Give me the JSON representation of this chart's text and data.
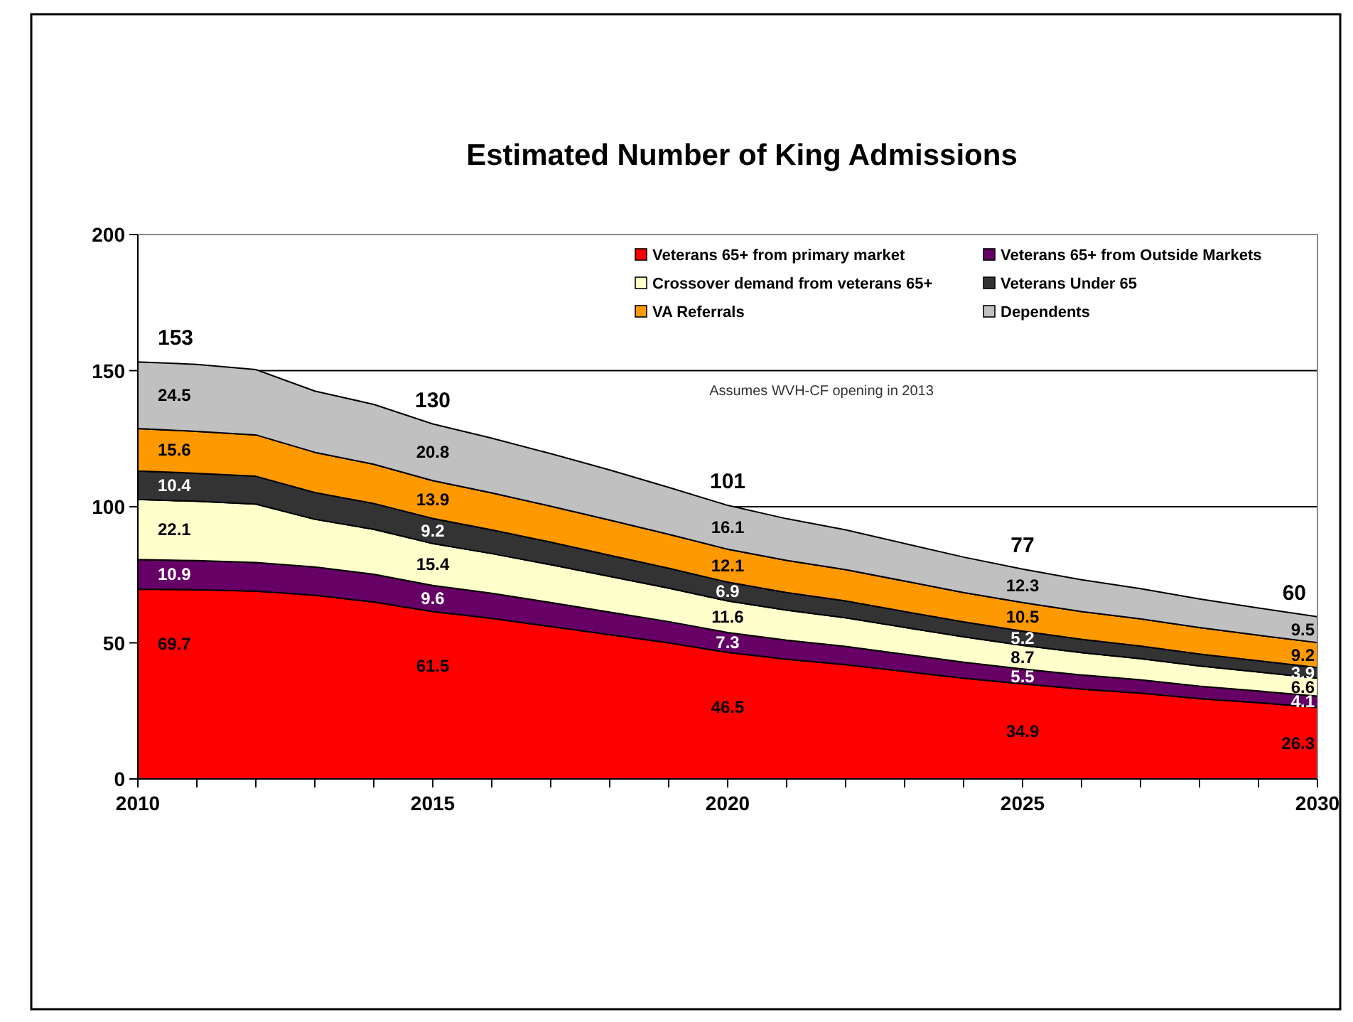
{
  "chart_data": {
    "type": "area",
    "stacked": true,
    "title": "Estimated Number of King Admissions",
    "annotations": [
      "Assumes WVH-CF opening in 2013"
    ],
    "x": [
      2010,
      2011,
      2012,
      2013,
      2014,
      2015,
      2016,
      2017,
      2018,
      2019,
      2020,
      2021,
      2022,
      2023,
      2024,
      2025,
      2026,
      2027,
      2028,
      2029,
      2030
    ],
    "xlim": [
      2010,
      2030
    ],
    "xticks": [
      2010,
      {
        "value": 2011,
        "label": null
      },
      {
        "value": 2012,
        "label": null
      },
      {
        "value": 2013,
        "label": null
      },
      {
        "value": 2014,
        "label": null
      },
      2015,
      {
        "value": 2016,
        "label": null
      },
      {
        "value": 2017,
        "label": null
      },
      {
        "value": 2018,
        "label": null
      },
      {
        "value": 2019,
        "label": null
      },
      2020,
      {
        "value": 2021,
        "label": null
      },
      {
        "value": 2022,
        "label": null
      },
      {
        "value": 2023,
        "label": null
      },
      {
        "value": 2024,
        "label": null
      },
      2025,
      {
        "value": 2026,
        "label": null
      },
      {
        "value": 2027,
        "label": null
      },
      {
        "value": 2028,
        "label": null
      },
      {
        "value": 2029,
        "label": null
      },
      2030
    ],
    "ylim": [
      0,
      200
    ],
    "yticks": [
      0,
      50,
      100,
      150,
      200
    ],
    "grid": "y",
    "legend": "top right",
    "series": [
      {
        "name": "Veterans 65+ from primary market",
        "color": "#ff0000",
        "values": [
          69.7,
          69.5,
          69,
          67.5,
          65,
          61.5,
          59,
          56,
          53,
          50,
          46.5,
          44,
          42,
          39.5,
          37,
          34.9,
          33,
          31.5,
          29.5,
          28,
          26.3
        ],
        "value_labels": [
          "69.7",
          null,
          null,
          null,
          null,
          "61.5",
          null,
          null,
          null,
          null,
          "46.5",
          null,
          null,
          null,
          null,
          "34.9",
          null,
          null,
          null,
          null,
          "26.3"
        ]
      },
      {
        "name": "Veterans 65+ from Outside Markets",
        "color": "#660066",
        "values": [
          10.9,
          10.7,
          10.5,
          10.4,
          10.2,
          9.6,
          9.2,
          8.8,
          8.3,
          7.8,
          7.3,
          7,
          6.7,
          6.3,
          5.9,
          5.5,
          5.2,
          4.9,
          4.6,
          4.3,
          4.1
        ],
        "value_labels": [
          "10.9",
          null,
          null,
          null,
          null,
          "9.6",
          null,
          null,
          null,
          null,
          "7.3",
          null,
          null,
          null,
          null,
          "5.5",
          null,
          null,
          null,
          null,
          "4.1"
        ]
      },
      {
        "name": "Crossover demand from veterans 65+",
        "color": "#ffffcc",
        "values": [
          22.1,
          21.8,
          21.5,
          17.5,
          16.5,
          15.4,
          14.6,
          13.9,
          13.1,
          12.3,
          11.6,
          11,
          10.5,
          9.9,
          9.3,
          8.7,
          8.2,
          7.8,
          7.4,
          7,
          6.6
        ],
        "value_labels": [
          "22.1",
          null,
          null,
          null,
          null,
          "15.4",
          null,
          null,
          null,
          null,
          "11.6",
          null,
          null,
          null,
          null,
          "8.7",
          null,
          null,
          null,
          null,
          "6.6"
        ]
      },
      {
        "name": "Veterans Under 65",
        "color": "#333333",
        "values": [
          10.4,
          10.3,
          10.2,
          9.8,
          9.5,
          9.2,
          8.7,
          8.3,
          7.8,
          7.3,
          6.9,
          6.5,
          6.2,
          5.8,
          5.5,
          5.2,
          4.9,
          4.6,
          4.4,
          4.1,
          3.9
        ],
        "value_labels": [
          "10.4",
          null,
          null,
          null,
          null,
          "9.2",
          null,
          null,
          null,
          null,
          "6.9",
          null,
          null,
          null,
          null,
          "5.2",
          null,
          null,
          null,
          null,
          "3.9"
        ]
      },
      {
        "name": "VA Referrals",
        "color": "#ff9900",
        "values": [
          15.6,
          15.4,
          15.2,
          14.8,
          14.4,
          13.9,
          13.6,
          13.2,
          12.9,
          12.5,
          12.1,
          11.8,
          11.5,
          11.2,
          10.8,
          10.5,
          10.2,
          10,
          9.7,
          9.4,
          9.2
        ],
        "value_labels": [
          "15.6",
          null,
          null,
          null,
          null,
          "13.9",
          null,
          null,
          null,
          null,
          "12.1",
          null,
          null,
          null,
          null,
          "10.5",
          null,
          null,
          null,
          null,
          "9.2"
        ]
      },
      {
        "name": "Dependents",
        "color": "#c0c0c0",
        "values": [
          24.5,
          24.6,
          24,
          22.5,
          22,
          20.8,
          20.1,
          19.3,
          18.4,
          17.2,
          16.1,
          15.3,
          14.6,
          13.8,
          13,
          12.3,
          11.7,
          11.1,
          10.5,
          10,
          9.5
        ],
        "value_labels": [
          "24.5",
          null,
          null,
          null,
          null,
          "20.8",
          null,
          null,
          null,
          null,
          "16.1",
          null,
          null,
          null,
          null,
          "12.3",
          null,
          null,
          null,
          null,
          "9.5"
        ]
      }
    ],
    "totals": [
      "153",
      null,
      null,
      null,
      null,
      "130",
      null,
      null,
      null,
      null,
      "101",
      null,
      null,
      null,
      null,
      "77",
      null,
      null,
      null,
      null,
      "60"
    ]
  }
}
